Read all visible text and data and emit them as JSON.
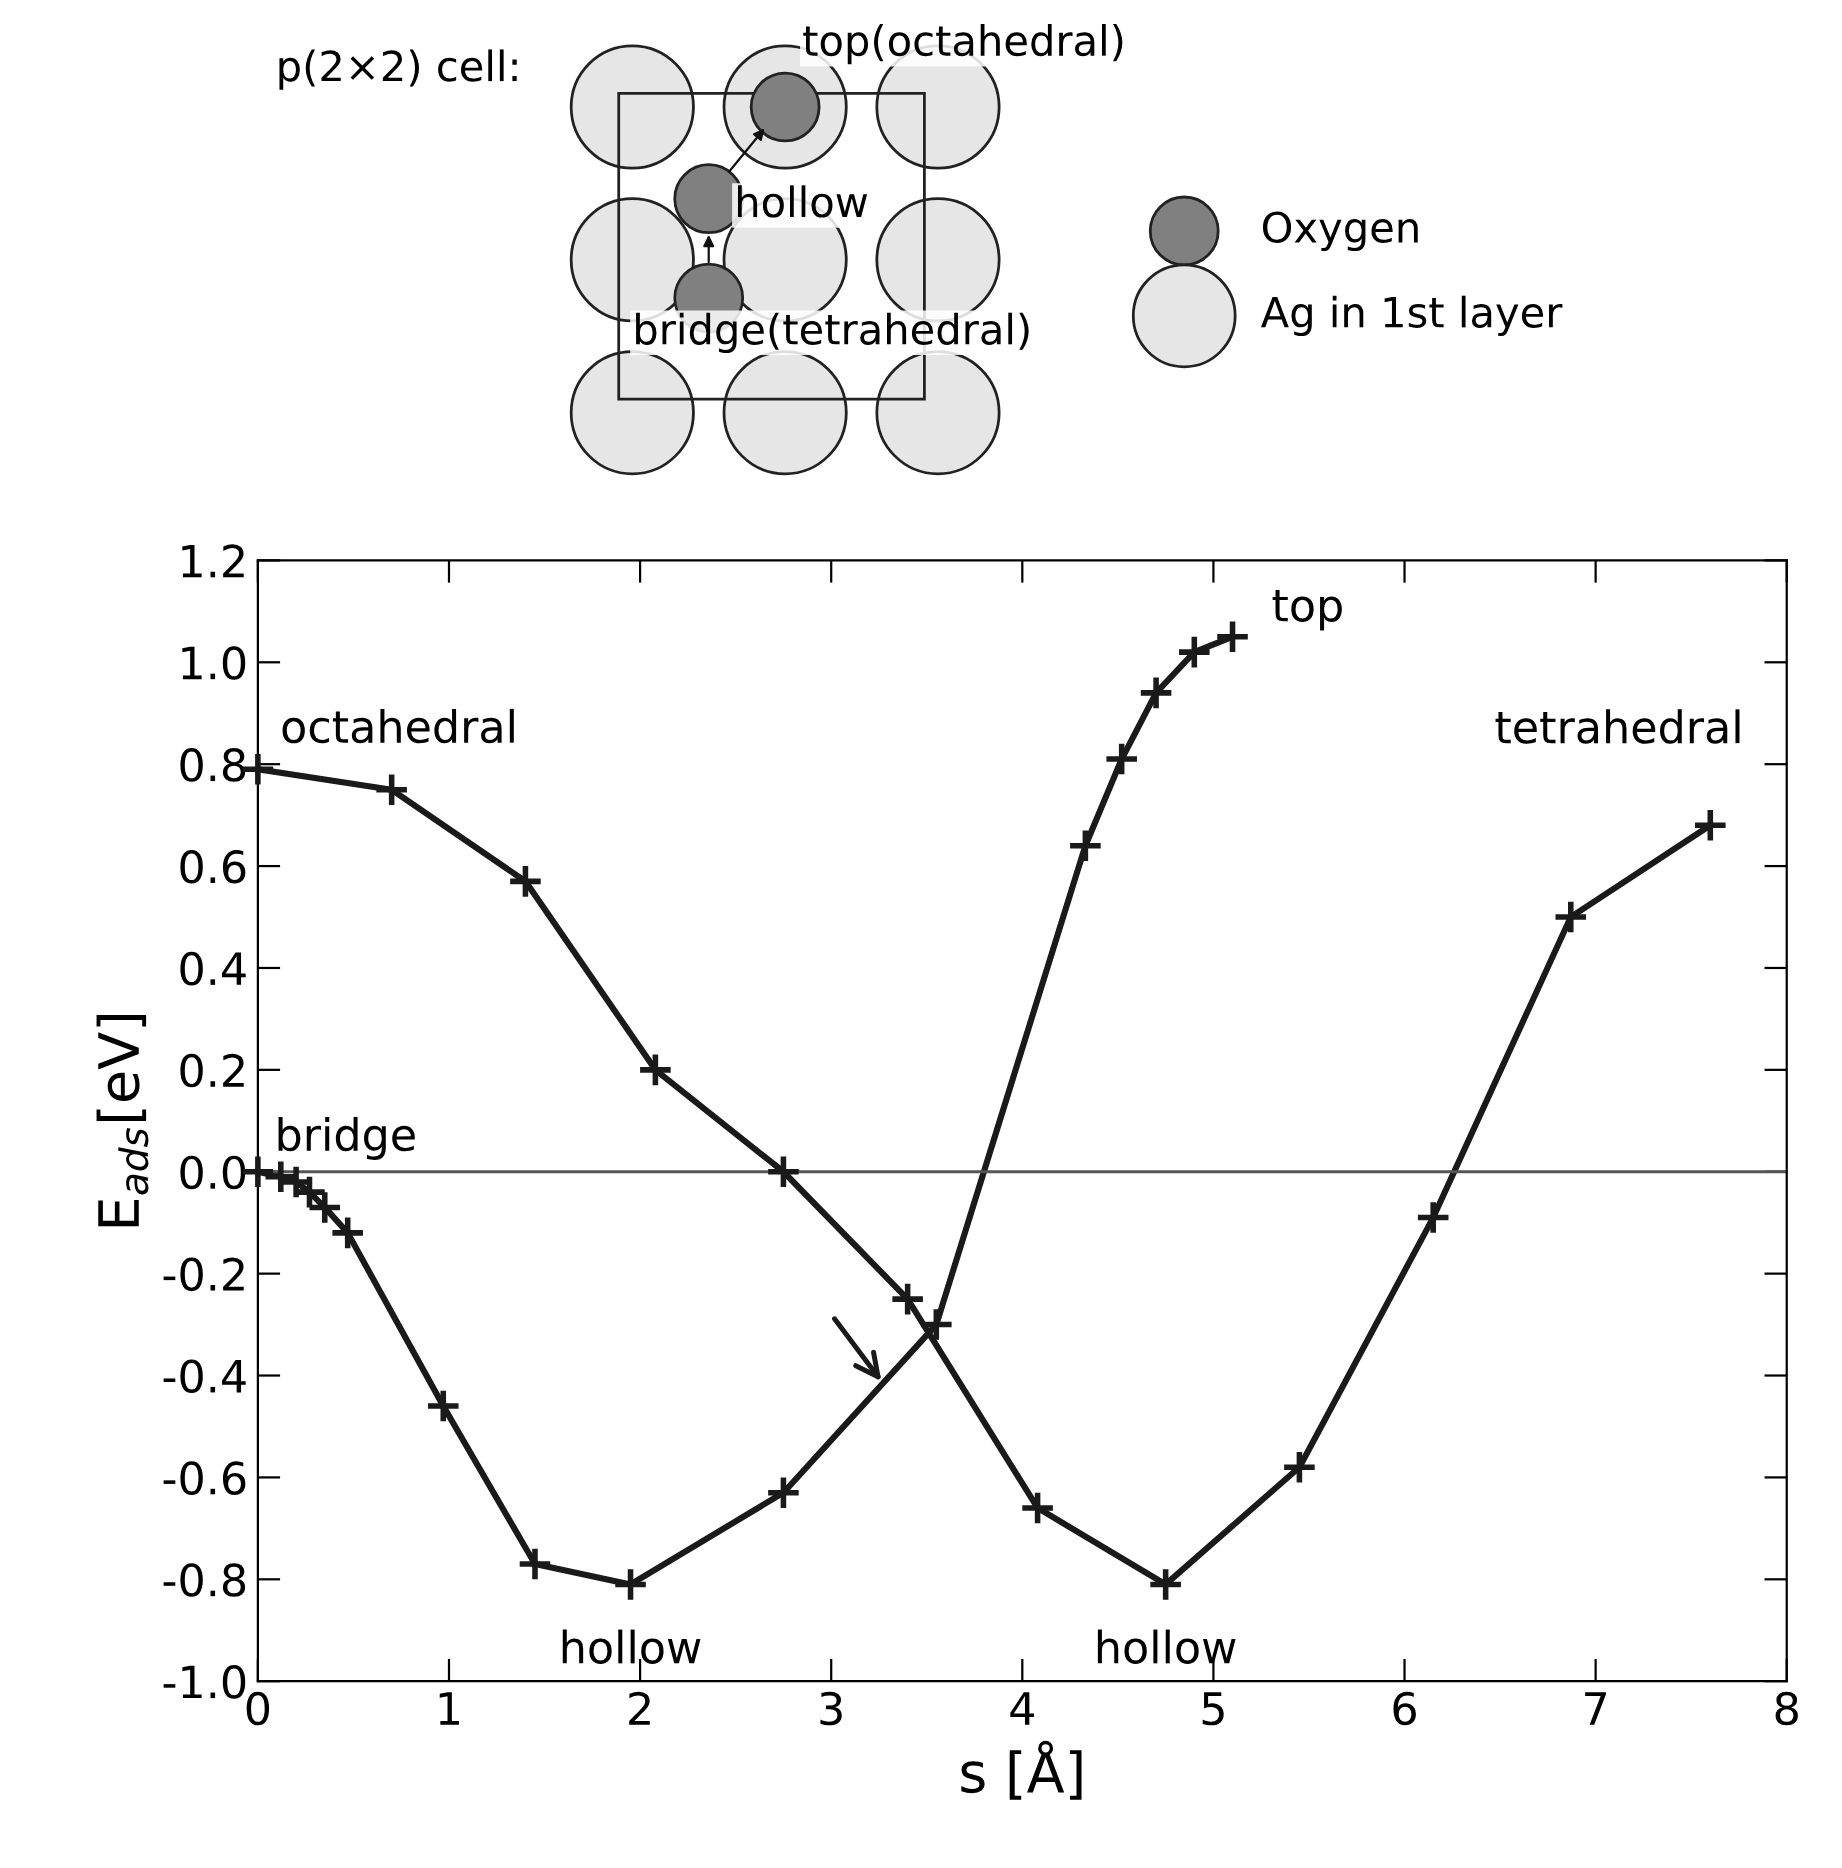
{
  "chart_data": {
    "type": "line",
    "xlabel": "s [Å]",
    "ylabel": "E$_{ads}$[eV]",
    "xlim": [
      0,
      8
    ],
    "ylim": [
      -1.0,
      1.2
    ],
    "xticks": [
      0,
      1,
      2,
      3,
      4,
      5,
      6,
      7,
      8
    ],
    "yticks": [
      {
        "value": -1.0,
        "label": "-1.0"
      },
      -0.8,
      -0.6,
      -0.4,
      -0.2,
      {
        "value": 0.0,
        "label": "0.0"
      },
      0.2,
      0.4,
      0.6,
      0.8,
      {
        "value": 1.0,
        "label": "1.0"
      },
      1.2
    ],
    "marker": "cross",
    "line_style": "solid",
    "grid": false,
    "legend": false,
    "series": [
      {
        "color": "#1a1a1a",
        "x": [
          0,
          0.7,
          1.4,
          2.08,
          2.75,
          3.4,
          4.08,
          4.75,
          5.45,
          6.15,
          6.87,
          7.6
        ],
        "values": [
          0.79,
          0.75,
          0.57,
          0.2,
          0.0,
          -0.25,
          -0.66,
          -0.81,
          -0.58,
          -0.09,
          0.5,
          0.68
        ]
      },
      {
        "color": "#1a1a1a",
        "x": [
          0,
          0.12,
          0.2,
          0.27,
          0.35,
          0.47,
          0.97,
          1.45,
          1.95,
          2.75,
          3.55,
          4.33,
          4.52,
          4.7,
          4.9,
          5.1
        ],
        "values": [
          0.0,
          -0.01,
          -0.02,
          -0.04,
          -0.07,
          -0.12,
          -0.46,
          -0.77,
          -0.81,
          -0.63,
          -0.3,
          0.64,
          0.81,
          0.94,
          1.02,
          1.05
        ]
      }
    ],
    "ref_lines": [
      {
        "axis": "y",
        "value": 0.0,
        "color": "#555555"
      }
    ],
    "annotations": [
      {
        "text": "octahedral",
        "x": 0,
        "y": 0.79
      },
      {
        "text": "bridge",
        "x": 0,
        "y": 0.0
      },
      {
        "text": "hollow",
        "x": 1.95,
        "y": -0.81
      },
      {
        "text": "hollow",
        "x": 4.75,
        "y": -0.81
      },
      {
        "text": "top",
        "x": 5.1,
        "y": 1.05
      },
      {
        "text": "tetrahedral",
        "x": 7.6,
        "y": 0.68
      },
      "p(2×2) cell:",
      "top(octahedral)",
      "hollow",
      "bridge(tetrahedral)",
      "Oxygen",
      "Ag in 1st layer"
    ]
  }
}
